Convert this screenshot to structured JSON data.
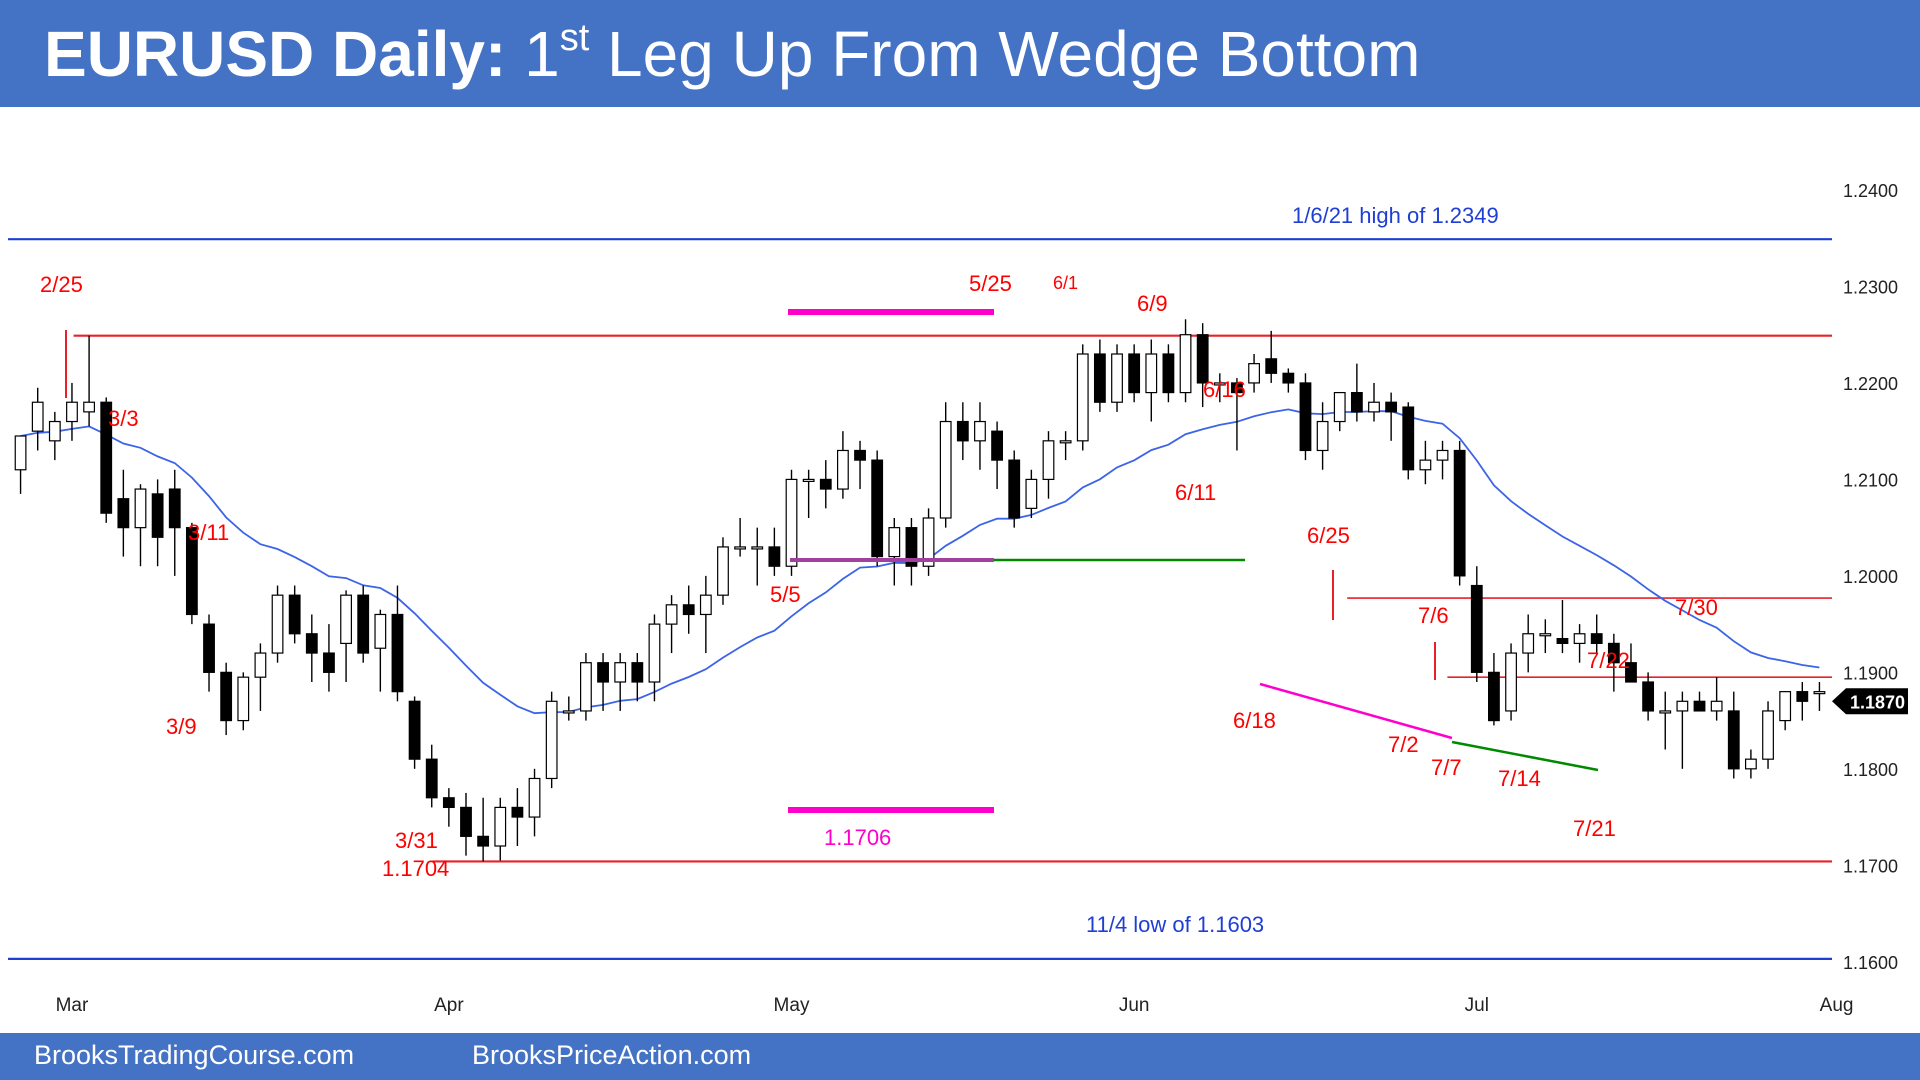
{
  "title": {
    "bold": "EURUSD Daily:",
    "leg_number": "1",
    "leg_suffix": "st",
    "rest": " Leg Up From Wedge Bottom"
  },
  "footer": {
    "left": "BrooksTradingCourse.com",
    "right": "BrooksPriceAction.com"
  },
  "colors": {
    "banner": "#4472C4",
    "red_line": "#E8202A",
    "blue_line": "#1F3FD4",
    "ema": "#3C64E6",
    "magenta": "#FF00CC",
    "green": "#008A00",
    "label_red": "#FF0000",
    "label_blue": "#1F3FD4",
    "label_magenta": "#FF00CC"
  },
  "chart_data": {
    "type": "candlestick",
    "instrument": "EURUSD",
    "timeframe": "Daily",
    "ylim": [
      1.155,
      1.24
    ],
    "y_ticks": [
      "1.1600",
      "1.1700",
      "1.1800",
      "1.1900",
      "1.2000",
      "1.2100",
      "1.2200",
      "1.2300",
      "1.2400"
    ],
    "x_labels": [
      {
        "label": "Mar",
        "index": 3
      },
      {
        "label": "Apr",
        "index": 25
      },
      {
        "label": "May",
        "index": 45
      },
      {
        "label": "Jun",
        "index": 65
      },
      {
        "label": "Jul",
        "index": 85
      },
      {
        "label": "Aug",
        "index": 106
      }
    ],
    "last_price": "1.1870",
    "ohlc": [
      [
        1.211,
        1.2145,
        1.2085,
        1.2145
      ],
      [
        1.215,
        1.2195,
        1.213,
        1.218
      ],
      [
        1.214,
        1.217,
        1.212,
        1.216
      ],
      [
        1.216,
        1.22,
        1.214,
        1.218
      ],
      [
        1.217,
        1.2249,
        1.2155,
        1.218
      ],
      [
        1.218,
        1.2185,
        1.2055,
        1.2065
      ],
      [
        1.208,
        1.211,
        1.202,
        1.205
      ],
      [
        1.205,
        1.2095,
        1.201,
        1.209
      ],
      [
        1.2085,
        1.21,
        1.201,
        1.204
      ],
      [
        1.209,
        1.211,
        1.2,
        1.205
      ],
      [
        1.205,
        1.2055,
        1.195,
        1.196
      ],
      [
        1.195,
        1.196,
        1.188,
        1.19
      ],
      [
        1.19,
        1.191,
        1.1835,
        1.185
      ],
      [
        1.185,
        1.19,
        1.184,
        1.1895
      ],
      [
        1.1895,
        1.193,
        1.186,
        1.192
      ],
      [
        1.192,
        1.199,
        1.191,
        1.198
      ],
      [
        1.198,
        1.199,
        1.193,
        1.194
      ],
      [
        1.194,
        1.196,
        1.189,
        1.192
      ],
      [
        1.192,
        1.195,
        1.188,
        1.19
      ],
      [
        1.193,
        1.1985,
        1.189,
        1.198
      ],
      [
        1.198,
        1.199,
        1.191,
        1.192
      ],
      [
        1.1925,
        1.1965,
        1.188,
        1.196
      ],
      [
        1.196,
        1.199,
        1.187,
        1.188
      ],
      [
        1.187,
        1.1875,
        1.18,
        1.181
      ],
      [
        1.181,
        1.1825,
        1.176,
        1.177
      ],
      [
        1.177,
        1.178,
        1.174,
        1.176
      ],
      [
        1.176,
        1.1775,
        1.171,
        1.173
      ],
      [
        1.173,
        1.177,
        1.1704,
        1.172
      ],
      [
        1.172,
        1.177,
        1.1705,
        1.176
      ],
      [
        1.176,
        1.178,
        1.172,
        1.175
      ],
      [
        1.175,
        1.18,
        1.173,
        1.179
      ],
      [
        1.179,
        1.188,
        1.178,
        1.187
      ],
      [
        1.186,
        1.1875,
        1.185,
        1.186
      ],
      [
        1.186,
        1.192,
        1.185,
        1.191
      ],
      [
        1.191,
        1.192,
        1.186,
        1.189
      ],
      [
        1.189,
        1.192,
        1.186,
        1.191
      ],
      [
        1.191,
        1.192,
        1.187,
        1.189
      ],
      [
        1.189,
        1.196,
        1.187,
        1.195
      ],
      [
        1.195,
        1.198,
        1.192,
        1.197
      ],
      [
        1.197,
        1.199,
        1.194,
        1.196
      ],
      [
        1.196,
        1.2,
        1.192,
        1.198
      ],
      [
        1.198,
        1.204,
        1.197,
        1.203
      ],
      [
        1.203,
        1.206,
        1.202,
        1.203
      ],
      [
        1.203,
        1.205,
        1.199,
        1.203
      ],
      [
        1.203,
        1.205,
        1.2,
        1.201
      ],
      [
        1.201,
        1.211,
        1.2,
        1.21
      ],
      [
        1.21,
        1.211,
        1.206,
        1.21
      ],
      [
        1.21,
        1.212,
        1.207,
        1.209
      ],
      [
        1.209,
        1.215,
        1.208,
        1.213
      ],
      [
        1.213,
        1.214,
        1.209,
        1.212
      ],
      [
        1.212,
        1.213,
        1.201,
        1.202
      ],
      [
        1.202,
        1.206,
        1.199,
        1.205
      ],
      [
        1.205,
        1.206,
        1.199,
        1.201
      ],
      [
        1.201,
        1.207,
        1.2,
        1.206
      ],
      [
        1.206,
        1.218,
        1.205,
        1.216
      ],
      [
        1.216,
        1.218,
        1.212,
        1.214
      ],
      [
        1.214,
        1.218,
        1.211,
        1.216
      ],
      [
        1.215,
        1.216,
        1.209,
        1.212
      ],
      [
        1.212,
        1.213,
        1.205,
        1.206
      ],
      [
        1.207,
        1.211,
        1.206,
        1.21
      ],
      [
        1.21,
        1.215,
        1.208,
        1.214
      ],
      [
        1.214,
        1.215,
        1.212,
        1.214
      ],
      [
        1.214,
        1.224,
        1.213,
        1.223
      ],
      [
        1.223,
        1.2245,
        1.217,
        1.218
      ],
      [
        1.218,
        1.224,
        1.217,
        1.223
      ],
      [
        1.223,
        1.224,
        1.218,
        1.219
      ],
      [
        1.219,
        1.2245,
        1.216,
        1.223
      ],
      [
        1.223,
        1.224,
        1.218,
        1.219
      ],
      [
        1.219,
        1.2266,
        1.218,
        1.225
      ],
      [
        1.225,
        1.2262,
        1.2175,
        1.22
      ],
      [
        1.22,
        1.221,
        1.218,
        1.22
      ],
      [
        1.22,
        1.2205,
        1.213,
        1.219
      ],
      [
        1.22,
        1.223,
        1.219,
        1.222
      ],
      [
        1.2225,
        1.2254,
        1.22,
        1.221
      ],
      [
        1.221,
        1.2215,
        1.219,
        1.22
      ],
      [
        1.22,
        1.221,
        1.212,
        1.213
      ],
      [
        1.213,
        1.218,
        1.211,
        1.216
      ],
      [
        1.216,
        1.219,
        1.215,
        1.219
      ],
      [
        1.219,
        1.222,
        1.216,
        1.217
      ],
      [
        1.217,
        1.22,
        1.216,
        1.218
      ],
      [
        1.218,
        1.219,
        1.214,
        1.217
      ],
      [
        1.2175,
        1.218,
        1.21,
        1.211
      ],
      [
        1.211,
        1.214,
        1.2095,
        1.212
      ],
      [
        1.212,
        1.214,
        1.21,
        1.213
      ],
      [
        1.213,
        1.214,
        1.199,
        1.2
      ],
      [
        1.199,
        1.201,
        1.189,
        1.19
      ],
      [
        1.19,
        1.192,
        1.1845,
        1.185
      ],
      [
        1.186,
        1.193,
        1.185,
        1.192
      ],
      [
        1.192,
        1.196,
        1.19,
        1.194
      ],
      [
        1.194,
        1.1955,
        1.192,
        1.194
      ],
      [
        1.1935,
        1.1975,
        1.192,
        1.193
      ],
      [
        1.193,
        1.195,
        1.191,
        1.194
      ],
      [
        1.194,
        1.196,
        1.192,
        1.193
      ],
      [
        1.193,
        1.194,
        1.188,
        1.191
      ],
      [
        1.191,
        1.193,
        1.189,
        1.189
      ],
      [
        1.189,
        1.19,
        1.185,
        1.186
      ],
      [
        1.186,
        1.188,
        1.182,
        1.186
      ],
      [
        1.186,
        1.188,
        1.18,
        1.187
      ],
      [
        1.187,
        1.188,
        1.186,
        1.186
      ],
      [
        1.186,
        1.1895,
        1.185,
        1.187
      ],
      [
        1.186,
        1.188,
        1.179,
        1.18
      ],
      [
        1.18,
        1.182,
        1.179,
        1.181
      ],
      [
        1.181,
        1.187,
        1.18,
        1.186
      ],
      [
        1.185,
        1.188,
        1.184,
        1.188
      ],
      [
        1.188,
        1.189,
        1.185,
        1.187
      ],
      [
        1.188,
        1.189,
        1.186,
        1.188
      ]
    ],
    "horizontal_lines": [
      {
        "name": "high-2349-line",
        "price": 1.2349,
        "x_from": 0,
        "x_to": 1,
        "color": "#1F3FD4"
      },
      {
        "name": "resistance-red-line",
        "price": 1.2249,
        "x_from": 0.036,
        "x_to": 1,
        "color": "#E8202A"
      },
      {
        "name": "low-1704-line",
        "price": 1.1704,
        "x_from": 0.233,
        "x_to": 1,
        "color": "#E8202A"
      },
      {
        "name": "low-1603-line",
        "price": 1.1603,
        "x_from": 0,
        "x_to": 1,
        "color": "#1F3FD4"
      },
      {
        "name": "level-6-25-line",
        "price": 1.1977,
        "x_from": 0.735,
        "x_to": 1,
        "color": "#E8202A"
      },
      {
        "name": "level-7-6-line",
        "price": 1.1895,
        "x_from": 0.79,
        "x_to": 1,
        "color": "#E8202A"
      }
    ]
  },
  "labels": {
    "high_2349": "1/6/21 high of 1.2349",
    "low_1603": "11/4 low of 1.1603",
    "magenta_1706": "1.1706",
    "low_value_3_31": "1.1704",
    "d_2_25": "2/25",
    "d_3_3": "3/3",
    "d_3_11": "3/11",
    "d_3_9": "3/9",
    "d_3_31": "3/31",
    "d_5_5": "5/5",
    "d_5_25": "5/25",
    "d_6_1": "6/1",
    "d_6_9": "6/9",
    "d_6_16": "6/16",
    "d_6_11": "6/11",
    "d_6_25": "6/25",
    "d_6_18": "6/18",
    "d_7_6": "7/6",
    "d_7_2": "7/2",
    "d_7_7": "7/7",
    "d_7_14": "7/14",
    "d_7_21": "7/21",
    "d_7_22": "7/22",
    "d_7_30": "7/30"
  }
}
